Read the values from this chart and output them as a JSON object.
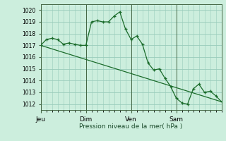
{
  "background_color": "#cceedd",
  "grid_color": "#99ccbb",
  "line_color": "#1a6b2a",
  "marker_color": "#1a6b2a",
  "xlabel": "Pression niveau de la mer( hPa )",
  "ylim": [
    1011.5,
    1020.5
  ],
  "yticks": [
    1012,
    1013,
    1014,
    1015,
    1016,
    1017,
    1018,
    1019,
    1020
  ],
  "day_labels": [
    "Jeu",
    "Dim",
    "Ven",
    "Sam"
  ],
  "day_positions": [
    0,
    24,
    48,
    72
  ],
  "xlim": [
    0,
    96
  ],
  "series1_x": [
    0,
    3,
    6,
    9,
    12,
    15,
    18,
    21,
    24,
    27,
    30,
    33,
    36,
    39,
    42,
    45,
    48,
    51,
    54,
    57,
    60,
    63,
    66,
    69,
    72,
    75,
    78,
    81,
    84,
    87,
    90,
    93,
    96
  ],
  "series1_y": [
    1017.0,
    1017.5,
    1017.6,
    1017.5,
    1017.1,
    1017.2,
    1017.1,
    1017.0,
    1017.0,
    1019.0,
    1019.1,
    1019.0,
    1019.0,
    1019.5,
    1019.85,
    1018.4,
    1017.5,
    1017.8,
    1017.1,
    1015.5,
    1014.9,
    1015.0,
    1014.2,
    1013.5,
    1012.5,
    1012.1,
    1012.0,
    1013.3,
    1013.7,
    1013.0,
    1013.1,
    1012.7,
    1012.2
  ],
  "series2_x": [
    0,
    96
  ],
  "series2_y": [
    1017.0,
    1012.2
  ]
}
